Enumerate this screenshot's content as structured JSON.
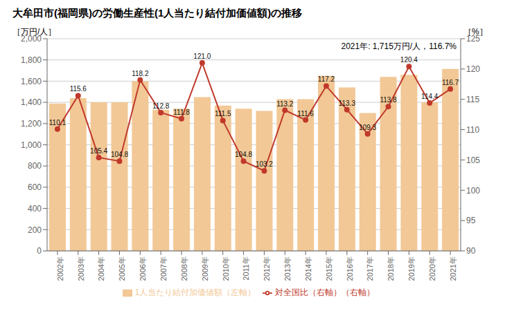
{
  "chart_data": {
    "type": "bar",
    "title": "大牟田市(福岡県)の労働生産性(1人当たり結付加価値額)の推移",
    "annotation": "2021年: 1,715万円/人，116.7%",
    "ylabel": "［万円/人］",
    "y2label": "［%］",
    "categories": [
      "2002年",
      "2003年",
      "2004年",
      "2005年",
      "2006年",
      "2007年",
      "2008年",
      "2009年",
      "2010年",
      "2011年",
      "2012年",
      "2013年",
      "2014年",
      "2015年",
      "2016年",
      "2017年",
      "2018年",
      "2019年",
      "2020年",
      "2021年"
    ],
    "series": [
      {
        "name": "1人当たり結付加価値額（左軸）",
        "type": "bar",
        "color": "#F2C896",
        "values": [
          1390,
          1440,
          1400,
          1400,
          1600,
          1330,
          1340,
          1450,
          1370,
          1340,
          1320,
          1430,
          1430,
          1650,
          1540,
          1300,
          1640,
          1660,
          1400,
          1715
        ]
      },
      {
        "name": "対全国比（右軸）（右軸）",
        "type": "line",
        "axis": "y2",
        "color": "#C0392B",
        "marker": "circle",
        "data_labels": true,
        "values": [
          110.1,
          115.6,
          105.4,
          104.8,
          118.2,
          112.8,
          111.8,
          121.0,
          111.5,
          104.8,
          103.2,
          113.2,
          111.6,
          117.2,
          113.3,
          109.3,
          113.8,
          120.4,
          114.4,
          116.7
        ],
        "value_labels": [
          "110.1",
          "115.6",
          "105.4",
          "104.8",
          "118.2",
          "112.8",
          "111.8",
          "121.0",
          "111.5",
          "104.8",
          "103.2",
          "113.2",
          "111.6",
          "117.2",
          "113.3",
          "109.3",
          "113.8",
          "120.4",
          "114.4",
          "116.7"
        ]
      }
    ],
    "ylim": [
      0,
      2000
    ],
    "yticks": [
      0,
      200,
      400,
      600,
      800,
      {
        "value": 1000,
        "label": "1,000"
      },
      {
        "value": 1200,
        "label": "1,200"
      },
      {
        "value": 1400,
        "label": "1,400"
      },
      {
        "value": 1600,
        "label": "1,600"
      },
      {
        "value": 1800,
        "label": "1,800"
      },
      {
        "value": 2000,
        "label": "2,000"
      }
    ],
    "y2lim": [
      90,
      125
    ],
    "y2ticks": [
      90,
      95,
      100,
      105,
      110,
      115,
      120,
      125
    ],
    "grid": true,
    "legend": "bottom"
  }
}
